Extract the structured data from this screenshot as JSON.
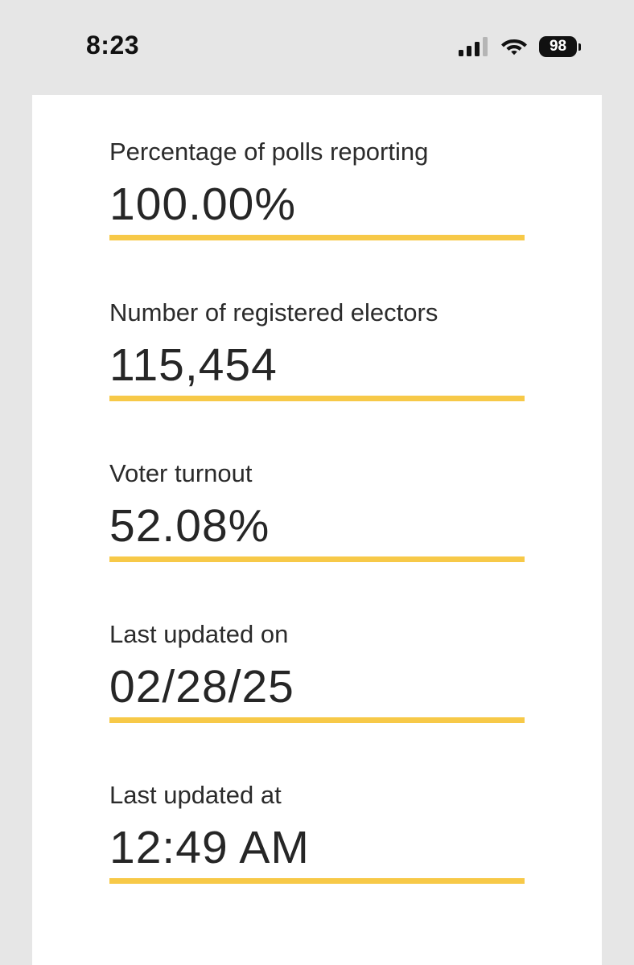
{
  "status_bar": {
    "time": "8:23",
    "battery": "98",
    "icons": [
      "cellular-signal-icon",
      "wifi-icon",
      "battery-icon"
    ]
  },
  "colors": {
    "accent_rule": "#f7c948",
    "background": "#e6e6e6",
    "card": "#ffffff"
  },
  "stats": [
    {
      "label": "Percentage of polls reporting",
      "value": "100.00%"
    },
    {
      "label": "Number of registered electors",
      "value": "115,454"
    },
    {
      "label": "Voter turnout",
      "value": "52.08%"
    },
    {
      "label": "Last updated on",
      "value": "02/28/25"
    },
    {
      "label": "Last updated at",
      "value": "12:49 AM"
    }
  ]
}
